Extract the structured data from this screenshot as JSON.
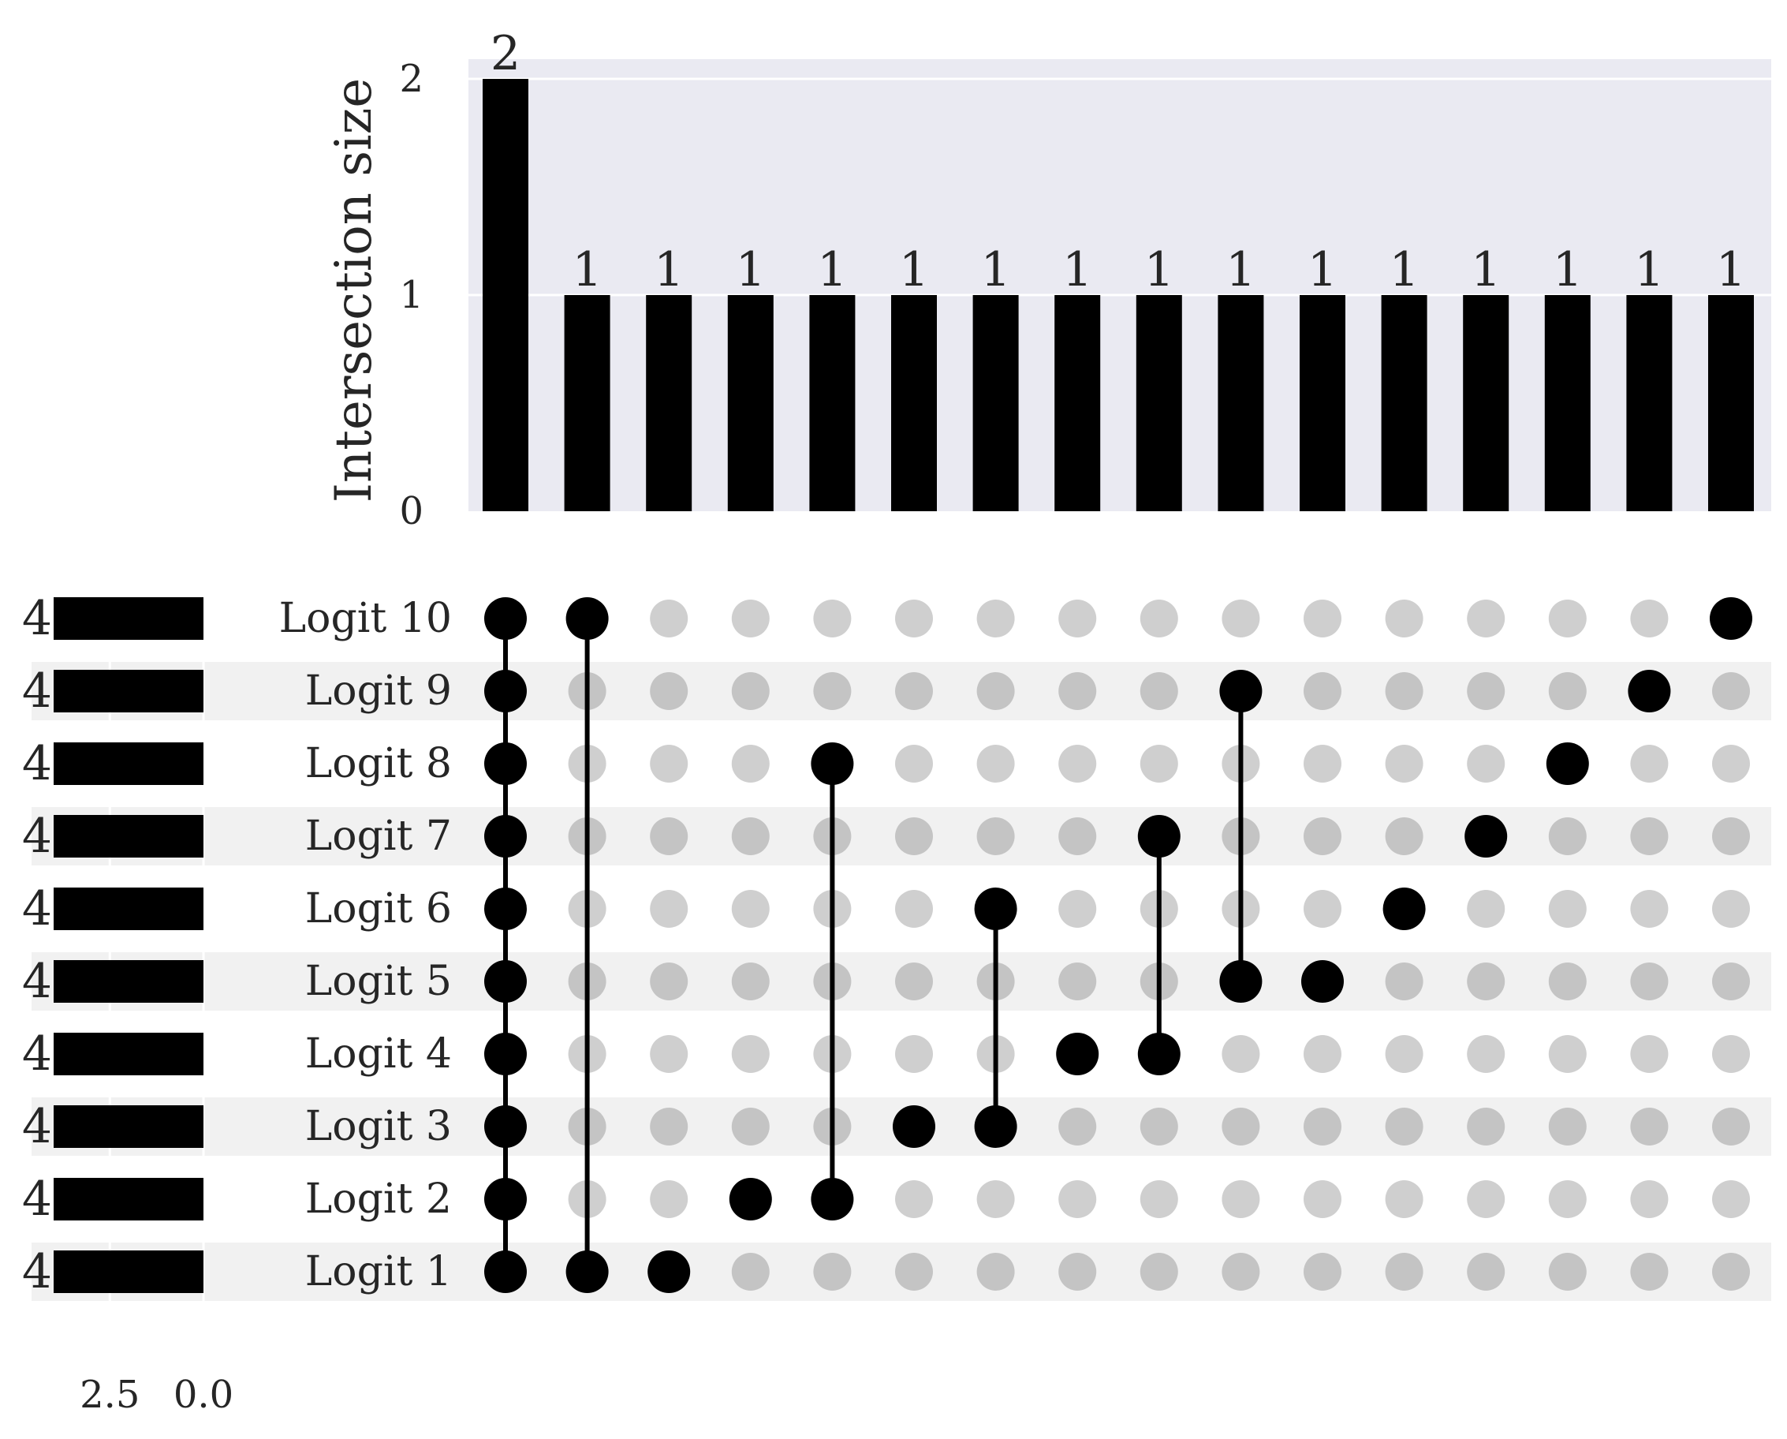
{
  "chart_data": {
    "type": "bar",
    "subtype": "upset",
    "ylabel": "Intersection size",
    "yticks": [
      "0",
      "1",
      "2"
    ],
    "ylim": [
      0,
      2.1
    ],
    "sets": [
      "Logit 10",
      "Logit 9",
      "Logit 8",
      "Logit 7",
      "Logit 6",
      "Logit 5",
      "Logit 4",
      "Logit 3",
      "Logit 2",
      "Logit 1"
    ],
    "set_sizes": [
      4,
      4,
      4,
      4,
      4,
      4,
      4,
      4,
      4,
      4
    ],
    "set_size_labels": [
      "4",
      "4",
      "4",
      "4",
      "4",
      "4",
      "4",
      "4",
      "4",
      "4"
    ],
    "set_size_ticks": [
      "2.5",
      "0.0"
    ],
    "set_size_xlim": [
      4,
      0
    ],
    "intersections": [
      {
        "sets": [
          "Logit 10",
          "Logit 9",
          "Logit 8",
          "Logit 7",
          "Logit 6",
          "Logit 5",
          "Logit 4",
          "Logit 3",
          "Logit 2",
          "Logit 1"
        ],
        "size": 2,
        "label": "2"
      },
      {
        "sets": [
          "Logit 10",
          "Logit 1"
        ],
        "size": 1,
        "label": "1"
      },
      {
        "sets": [
          "Logit 1"
        ],
        "size": 1,
        "label": "1"
      },
      {
        "sets": [
          "Logit 2"
        ],
        "size": 1,
        "label": "1"
      },
      {
        "sets": [
          "Logit 8",
          "Logit 2"
        ],
        "size": 1,
        "label": "1"
      },
      {
        "sets": [
          "Logit 3"
        ],
        "size": 1,
        "label": "1"
      },
      {
        "sets": [
          "Logit 6",
          "Logit 3"
        ],
        "size": 1,
        "label": "1"
      },
      {
        "sets": [
          "Logit 4"
        ],
        "size": 1,
        "label": "1"
      },
      {
        "sets": [
          "Logit 7",
          "Logit 4"
        ],
        "size": 1,
        "label": "1"
      },
      {
        "sets": [
          "Logit 9",
          "Logit 5"
        ],
        "size": 1,
        "label": "1"
      },
      {
        "sets": [
          "Logit 5"
        ],
        "size": 1,
        "label": "1"
      },
      {
        "sets": [
          "Logit 6"
        ],
        "size": 1,
        "label": "1"
      },
      {
        "sets": [
          "Logit 7"
        ],
        "size": 1,
        "label": "1"
      },
      {
        "sets": [
          "Logit 8"
        ],
        "size": 1,
        "label": "1"
      },
      {
        "sets": [
          "Logit 9"
        ],
        "size": 1,
        "label": "1"
      },
      {
        "sets": [
          "Logit 10"
        ],
        "size": 1,
        "label": "1"
      }
    ],
    "grid": true,
    "colors": {
      "bar": "#000000",
      "active_dot": "#000000",
      "inactive_dot": "#cfcfcf",
      "inactive_dot_shaded": "#c4c4c4",
      "plot_background": "#eaeaf2",
      "grid": "#ffffff",
      "row_shade": "#f1f1f1"
    }
  }
}
